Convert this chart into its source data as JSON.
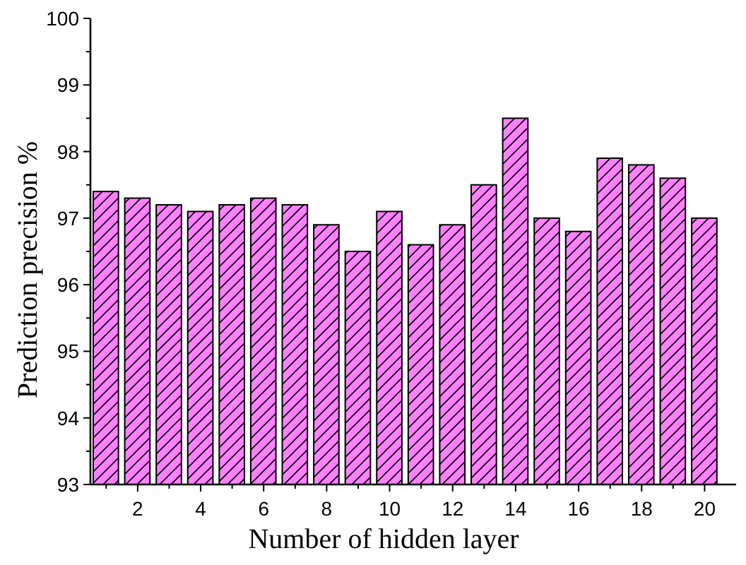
{
  "chart_data": {
    "type": "bar",
    "xlabel": "Number of hidden layer",
    "ylabel": "Prediction precision %",
    "x": [
      1,
      2,
      3,
      4,
      5,
      6,
      7,
      8,
      9,
      10,
      11,
      12,
      13,
      14,
      15,
      16,
      17,
      18,
      19,
      20
    ],
    "values": [
      97.4,
      97.3,
      97.2,
      97.1,
      97.2,
      97.3,
      97.2,
      96.9,
      96.5,
      97.1,
      96.6,
      96.9,
      97.5,
      98.5,
      97.0,
      96.8,
      97.9,
      97.8,
      97.6,
      97.0
    ],
    "color": "#ff80ff",
    "xlim": [
      0.5,
      21
    ],
    "xticks": [
      {
        "value": 1,
        "label": null
      },
      2,
      {
        "value": 3,
        "label": null
      },
      4,
      {
        "value": 5,
        "label": null
      },
      6,
      {
        "value": 7,
        "label": null
      },
      8,
      {
        "value": 9,
        "label": null
      },
      10,
      {
        "value": 11,
        "label": null
      },
      12,
      {
        "value": 13,
        "label": null
      },
      14,
      {
        "value": 15,
        "label": null
      },
      16,
      {
        "value": 17,
        "label": null
      },
      18,
      {
        "value": 19,
        "label": null
      },
      20
    ],
    "ylim": [
      93,
      100
    ],
    "yticks": [
      93,
      {
        "value": 93.5,
        "label": null
      },
      94,
      {
        "value": 94.5,
        "label": null
      },
      95,
      {
        "value": 95.5,
        "label": null
      },
      96,
      {
        "value": 96.5,
        "label": null
      },
      97,
      {
        "value": 97.5,
        "label": null
      },
      98,
      {
        "value": 98.5,
        "label": null
      },
      99,
      {
        "value": 99.5,
        "label": null
      },
      100
    ]
  }
}
